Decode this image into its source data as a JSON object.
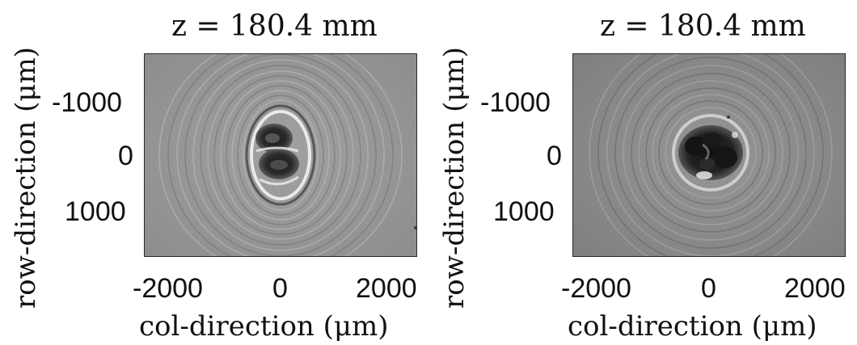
{
  "panels": [
    {
      "title": "z = 180.4 mm",
      "ylabel": "row-direction (μm)",
      "xlabel": "col-direction (μm)",
      "yticks": [
        "-1000",
        "0",
        "1000"
      ],
      "xticks": [
        "-2000",
        "0",
        "2000"
      ],
      "image": "in-line hologram: two stacked dark lobes with concentric interference fringes"
    },
    {
      "title": "z = 180.4 mm",
      "ylabel": "row-direction (μm)",
      "xlabel": "col-direction (μm)",
      "yticks": [
        "-1000",
        "0",
        "1000"
      ],
      "xticks": [
        "-2000",
        "0",
        "2000"
      ],
      "image": "in-line hologram: dark irregular cluster with concentric interference fringes"
    }
  ]
}
